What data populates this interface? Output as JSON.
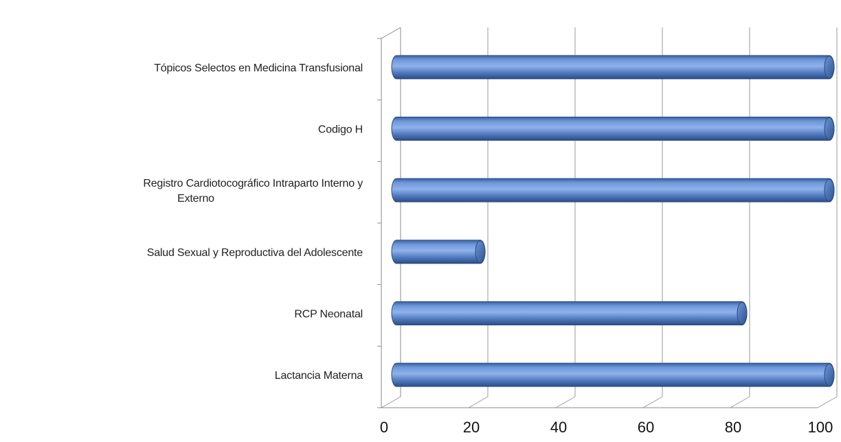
{
  "chart_data": {
    "type": "bar",
    "orientation": "horizontal",
    "title": "",
    "xlabel": "",
    "ylabel": "",
    "xlim": [
      0,
      100
    ],
    "grid": true,
    "legend": "none",
    "categories": [
      "Tópicos Selectos en Medicina Transfusional",
      "Codigo H",
      "Registro Cardiotocográfico Intraparto Interno y Externo",
      "Salud Sexual y Reproductiva del Adolescente",
      "RCP Neonatal",
      "Lactancia Materna"
    ],
    "category_lines": [
      [
        "Tópicos Selectos en Medicina Transfusional"
      ],
      [
        "Codigo H"
      ],
      [
        "Registro Cardiotocográfico Intraparto Interno y",
        "Externo"
      ],
      [
        "Salud Sexual y Reproductiva del Adolescente"
      ],
      [
        "RCP Neonatal"
      ],
      [
        "Lactancia Materna"
      ]
    ],
    "values": [
      100,
      100,
      100,
      20,
      80,
      100
    ],
    "x_ticks": [
      "0",
      "20",
      "40",
      "60",
      "80",
      "100"
    ],
    "bar_color": "#4f7fc8"
  }
}
